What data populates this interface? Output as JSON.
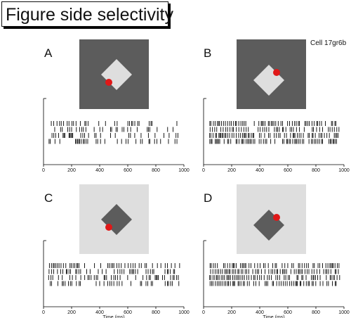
{
  "title": "Figure side selectivity",
  "cell_label": "Cell 17gr6b",
  "colors": {
    "dark_gray": "#5c5c5c",
    "light_gray": "#dedede",
    "marker_red": "#e01818",
    "spike_black": "#000000"
  },
  "chart_data": [
    {
      "type": "raster",
      "panel": "A",
      "stimulus": {
        "background": "dark",
        "square": "light",
        "square_position": "center",
        "red_edge": "left"
      },
      "trials": 4,
      "spike_density": "low",
      "x_ticks": [
        0,
        200,
        400,
        600,
        800,
        1000
      ],
      "xlim": [
        0,
        1000
      ],
      "xlabel": ""
    },
    {
      "type": "raster",
      "panel": "B",
      "stimulus": {
        "background": "dark",
        "square": "light",
        "square_position": "lower-left",
        "red_edge": "right"
      },
      "trials": 4,
      "spike_density": "high",
      "x_ticks": [
        0,
        200,
        400,
        600,
        800,
        1000
      ],
      "xlim": [
        0,
        1000
      ],
      "xlabel": ""
    },
    {
      "type": "raster",
      "panel": "C",
      "stimulus": {
        "background": "light",
        "square": "dark",
        "square_position": "center",
        "red_edge": "left"
      },
      "trials": 4,
      "spike_density": "medium",
      "x_ticks": [
        0,
        200,
        400,
        600,
        800,
        1000
      ],
      "xlim": [
        0,
        1000
      ],
      "xlabel": "Time (ms)"
    },
    {
      "type": "raster",
      "panel": "D",
      "stimulus": {
        "background": "light",
        "square": "dark",
        "square_position": "lower-left",
        "red_edge": "right"
      },
      "trials": 4,
      "spike_density": "high",
      "x_ticks": [
        0,
        200,
        400,
        600,
        800,
        1000
      ],
      "xlim": [
        0,
        1000
      ],
      "xlabel": "Time (ms)"
    }
  ]
}
